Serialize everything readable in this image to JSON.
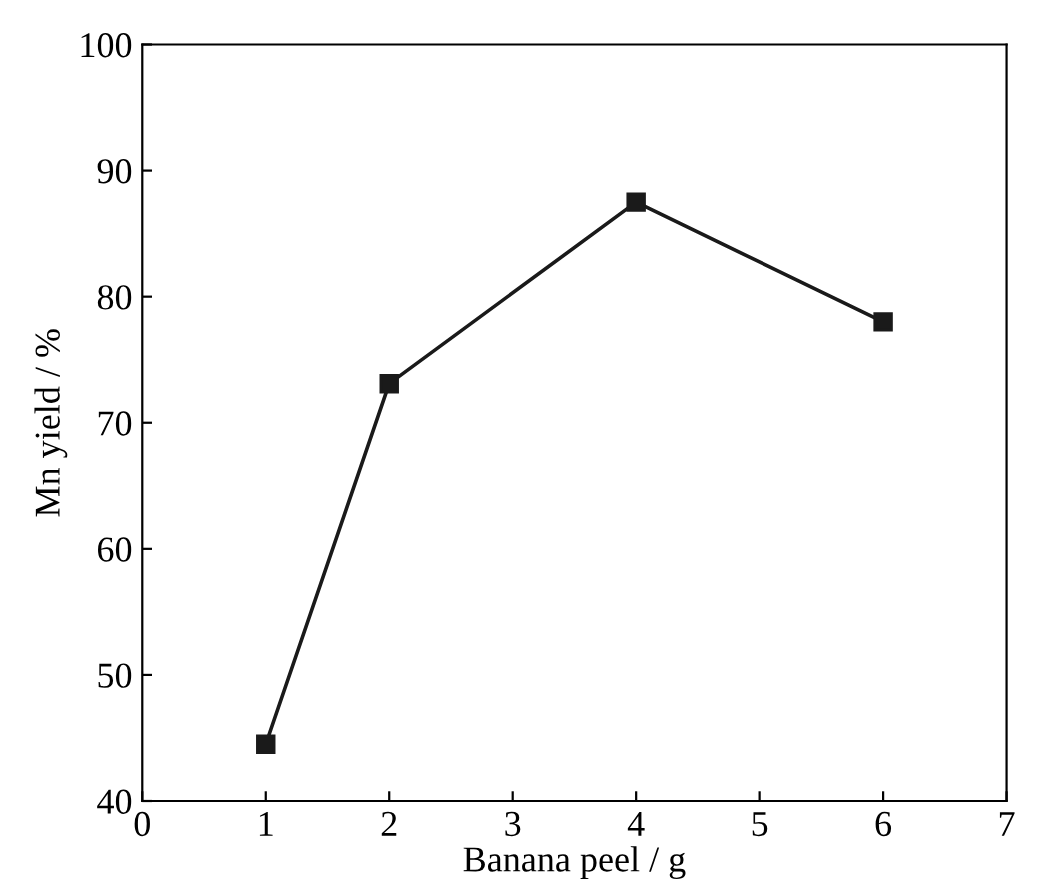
{
  "chart_data": {
    "type": "line",
    "xlabel": "Banana peel / g",
    "ylabel": "Mn yield / %",
    "x": [
      1,
      2,
      4,
      6
    ],
    "series": [
      {
        "color": "#1a1a1a",
        "values": [
          44.5,
          73.1,
          87.5,
          78.0
        ]
      }
    ],
    "xlim": [
      0,
      7
    ],
    "xticks": [
      0,
      1,
      2,
      3,
      4,
      5,
      6,
      7
    ],
    "ylim": [
      40,
      100
    ],
    "yticks": [
      40,
      50,
      60,
      70,
      80,
      90,
      100
    ],
    "marker": "square",
    "line_style": "solid",
    "grid": false,
    "legend": false
  }
}
